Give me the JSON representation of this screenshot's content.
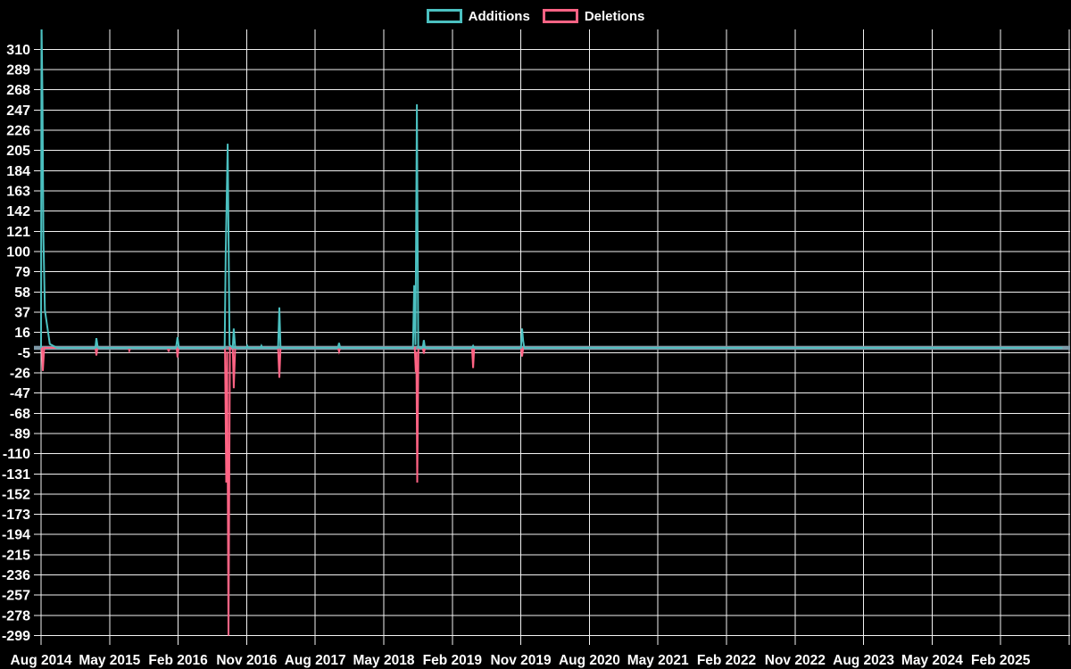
{
  "chart_data": {
    "type": "line",
    "title": "",
    "background_color": "#000000",
    "text_color": "#ffffff",
    "gridline_color": "#f2f2f2",
    "zero_line_color": "#7e99a7",
    "legend_position": "top-center",
    "legend": [
      "Additions",
      "Deletions"
    ],
    "x_axis": {
      "tick_labels": [
        "Aug 2014",
        "May 2015",
        "Feb 2016",
        "Nov 2016",
        "Aug 2017",
        "May 2018",
        "Feb 2019",
        "Nov 2019",
        "Aug 2020",
        "May 2021",
        "Feb 2022",
        "Nov 2022",
        "Aug 2023",
        "May 2024",
        "Feb 2025"
      ],
      "tick_interval_months": 9,
      "x_unit": "weeks since Aug 2014",
      "x_range_weeks": [
        0,
        583
      ]
    },
    "y_axis": {
      "tick_labels": [
        310,
        289,
        268,
        247,
        226,
        205,
        184,
        163,
        142,
        121,
        100,
        79,
        58,
        37,
        16,
        -5,
        -26,
        -47,
        -68,
        -89,
        -110,
        -131,
        -152,
        -173,
        -194,
        -215,
        -236,
        -257,
        -278,
        -299
      ],
      "min": -299,
      "max": 310,
      "step": 21,
      "grid": true
    },
    "series": [
      {
        "name": "Additions",
        "color": "#4bc0c0",
        "clipped_above_chart_top": true,
        "points_weeks_value": [
          [
            0,
            0
          ],
          [
            0.25,
            340
          ],
          [
            0.8,
            259
          ],
          [
            1.3,
            117
          ],
          [
            2.2,
            39
          ],
          [
            5,
            4
          ],
          [
            9,
            0
          ],
          [
            31,
            0
          ],
          [
            31.6,
            10
          ],
          [
            32.4,
            0
          ],
          [
            77,
            0
          ],
          [
            77.9,
            11
          ],
          [
            78.7,
            0
          ],
          [
            104.8,
            0
          ],
          [
            105.4,
            98
          ],
          [
            106.5,
            212
          ],
          [
            107.6,
            3
          ],
          [
            109.4,
            0
          ],
          [
            110,
            20
          ],
          [
            110.8,
            0
          ],
          [
            117.2,
            0
          ],
          [
            117.7,
            2
          ],
          [
            118.2,
            0
          ],
          [
            125.3,
            0
          ],
          [
            125.8,
            2
          ],
          [
            126.3,
            0
          ],
          [
            135.3,
            0
          ],
          [
            136,
            42
          ],
          [
            136.7,
            0
          ],
          [
            169.5,
            0
          ],
          [
            170.1,
            5
          ],
          [
            170.7,
            0
          ],
          [
            212.3,
            0
          ],
          [
            213,
            65
          ],
          [
            213.7,
            3
          ],
          [
            214.5,
            253
          ],
          [
            215.3,
            0
          ],
          [
            217.9,
            0
          ],
          [
            218.5,
            8
          ],
          [
            219.1,
            0
          ],
          [
            246,
            0
          ],
          [
            246.6,
            2
          ],
          [
            247.2,
            0
          ],
          [
            273.9,
            0
          ],
          [
            274.6,
            20
          ],
          [
            275.2,
            7
          ],
          [
            275.8,
            0
          ],
          [
            583,
            0
          ]
        ]
      },
      {
        "name": "Deletions",
        "color": "#ff6384",
        "points_weeks_value": [
          [
            0,
            0
          ],
          [
            0.5,
            0
          ],
          [
            1,
            -24
          ],
          [
            1.8,
            0
          ],
          [
            31.1,
            0
          ],
          [
            31.6,
            -8
          ],
          [
            32.2,
            0
          ],
          [
            49.9,
            0
          ],
          [
            50.4,
            -3
          ],
          [
            51,
            0
          ],
          [
            72.3,
            0
          ],
          [
            72.8,
            -4
          ],
          [
            73.4,
            0
          ],
          [
            77.4,
            0
          ],
          [
            77.9,
            -10
          ],
          [
            78.5,
            0
          ],
          [
            105,
            0
          ],
          [
            105.7,
            -140
          ],
          [
            106.2,
            -4
          ],
          [
            107,
            -299
          ],
          [
            107.8,
            0
          ],
          [
            109.4,
            0
          ],
          [
            110,
            -42
          ],
          [
            110.8,
            0
          ],
          [
            135.3,
            0
          ],
          [
            136,
            -31
          ],
          [
            136.7,
            0
          ],
          [
            169.5,
            0
          ],
          [
            170.1,
            -4
          ],
          [
            170.7,
            0
          ],
          [
            213.3,
            0
          ],
          [
            213.9,
            -25
          ],
          [
            214.2,
            -4
          ],
          [
            214.7,
            -140
          ],
          [
            215.4,
            0
          ],
          [
            217.9,
            0
          ],
          [
            218.5,
            -6
          ],
          [
            219.1,
            0
          ],
          [
            246,
            0
          ],
          [
            246.6,
            -21
          ],
          [
            247.2,
            0
          ],
          [
            273.9,
            0
          ],
          [
            274.6,
            -9
          ],
          [
            275.2,
            0
          ],
          [
            583,
            0
          ]
        ]
      }
    ]
  }
}
